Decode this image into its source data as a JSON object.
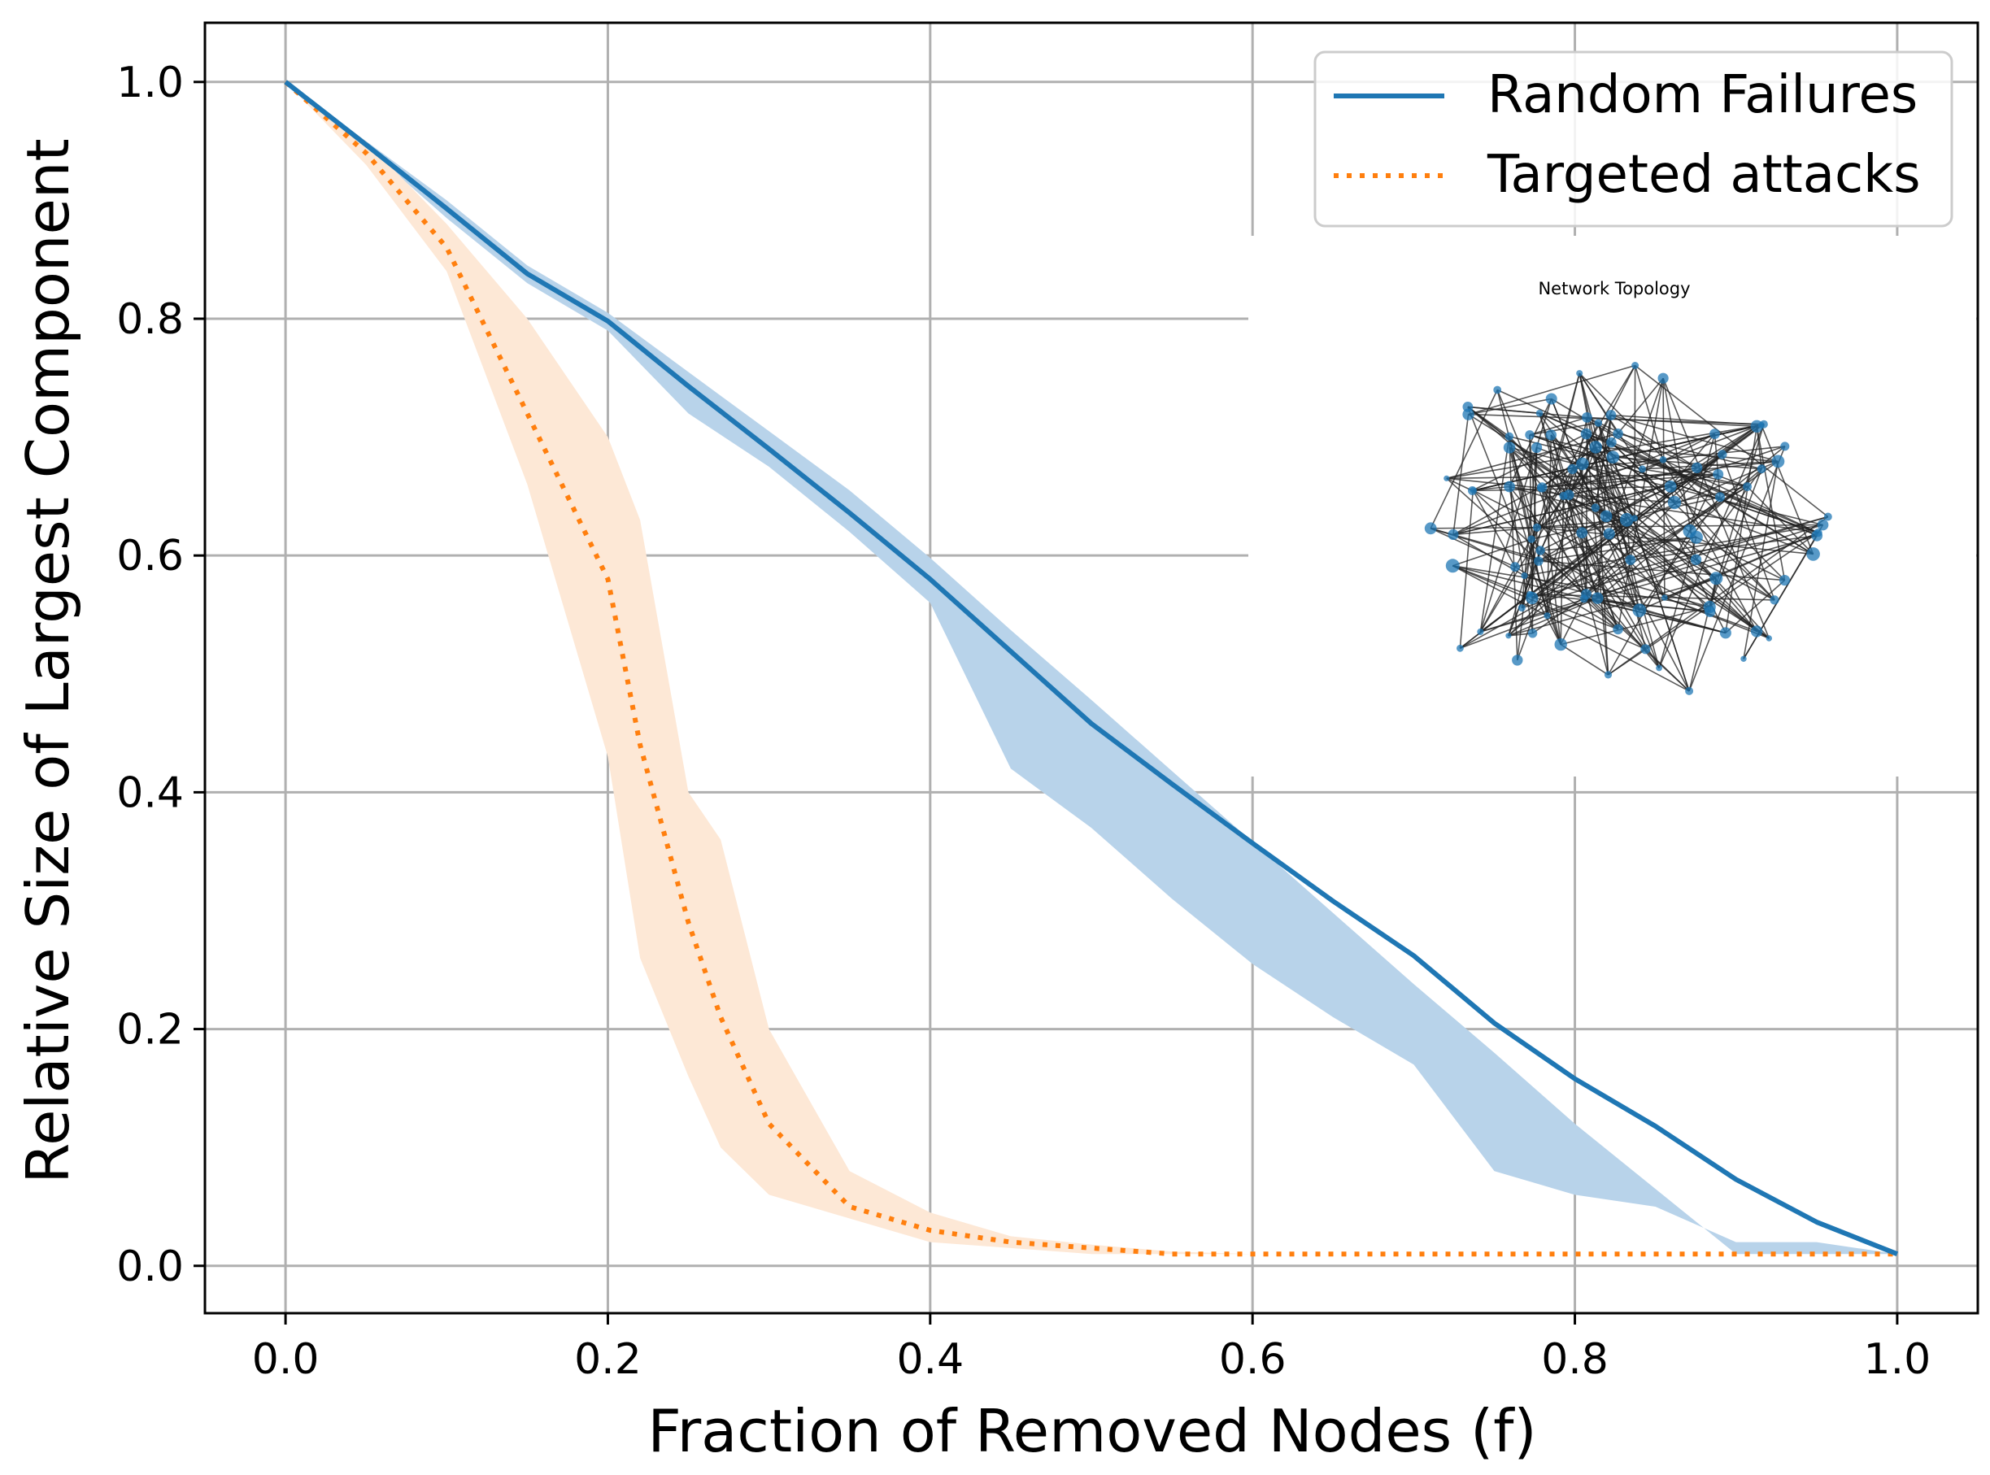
{
  "chart_data": {
    "type": "line",
    "title": "",
    "xlabel": "Fraction of Removed Nodes (f)",
    "ylabel": "Relative Size of Largest Component",
    "xlim": [
      -0.05,
      1.05
    ],
    "ylim": [
      -0.04,
      1.05
    ],
    "x_ticks": [
      0.0,
      0.2,
      0.4,
      0.6,
      0.8,
      1.0
    ],
    "y_ticks": [
      0.0,
      0.2,
      0.4,
      0.6,
      0.8,
      1.0
    ],
    "x_tick_labels": [
      "0.0",
      "0.2",
      "0.4",
      "0.6",
      "0.8",
      "1.0"
    ],
    "y_tick_labels": [
      "0.0",
      "0.2",
      "0.4",
      "0.6",
      "0.8",
      "1.0"
    ],
    "grid": true,
    "legend_position": "top-right",
    "series": [
      {
        "name": "Random Failures",
        "style": "solid",
        "color": "#1f77b4",
        "band_color": "#b8d3ea",
        "x": [
          0.0,
          0.05,
          0.1,
          0.15,
          0.2,
          0.25,
          0.3,
          0.35,
          0.4,
          0.45,
          0.5,
          0.55,
          0.6,
          0.65,
          0.7,
          0.75,
          0.8,
          0.85,
          0.9,
          0.95,
          1.0
        ],
        "values": [
          1.0,
          0.947,
          0.893,
          0.838,
          0.798,
          0.743,
          0.69,
          0.636,
          0.58,
          0.519,
          0.458,
          0.407,
          0.357,
          0.308,
          0.262,
          0.205,
          0.158,
          0.118,
          0.073,
          0.037,
          0.01
        ],
        "band_lower": [
          1.0,
          0.945,
          0.885,
          0.83,
          0.79,
          0.72,
          0.675,
          0.62,
          0.56,
          0.42,
          0.37,
          0.31,
          0.255,
          0.21,
          0.17,
          0.08,
          0.06,
          0.05,
          0.02,
          0.02,
          0.01
        ],
        "band_upper": [
          1.0,
          0.95,
          0.9,
          0.845,
          0.805,
          0.755,
          0.705,
          0.655,
          0.598,
          0.537,
          0.478,
          0.418,
          0.358,
          0.298,
          0.238,
          0.18,
          0.12,
          0.065,
          0.01,
          0.01,
          0.01
        ]
      },
      {
        "name": "Targeted attacks",
        "style": "dotted",
        "color": "#ff7f0e",
        "band_color": "#fde8d6",
        "x": [
          0.0,
          0.05,
          0.1,
          0.15,
          0.2,
          0.22,
          0.25,
          0.27,
          0.3,
          0.35,
          0.4,
          0.45,
          0.5,
          0.55,
          0.6,
          0.7,
          0.8,
          0.9,
          0.95,
          1.0
        ],
        "values": [
          1.0,
          0.94,
          0.86,
          0.72,
          0.58,
          0.44,
          0.29,
          0.21,
          0.12,
          0.05,
          0.03,
          0.02,
          0.015,
          0.01,
          0.01,
          0.01,
          0.01,
          0.01,
          0.01,
          0.01
        ],
        "band_lower": [
          1.0,
          0.93,
          0.84,
          0.66,
          0.43,
          0.26,
          0.16,
          0.1,
          0.06,
          0.04,
          0.02,
          0.015,
          0.01,
          0.01,
          0.01,
          0.01,
          0.01,
          0.01,
          0.01,
          0.01
        ],
        "band_upper": [
          1.0,
          0.95,
          0.88,
          0.8,
          0.7,
          0.63,
          0.4,
          0.36,
          0.2,
          0.08,
          0.045,
          0.025,
          0.018,
          0.012,
          0.01,
          0.01,
          0.01,
          0.01,
          0.01,
          0.01
        ]
      }
    ],
    "inset": {
      "title": "Network Topology",
      "node_color": "#1f77b4",
      "edge_color": "#222222",
      "node_count": 100,
      "edges_per_node": 3
    }
  }
}
